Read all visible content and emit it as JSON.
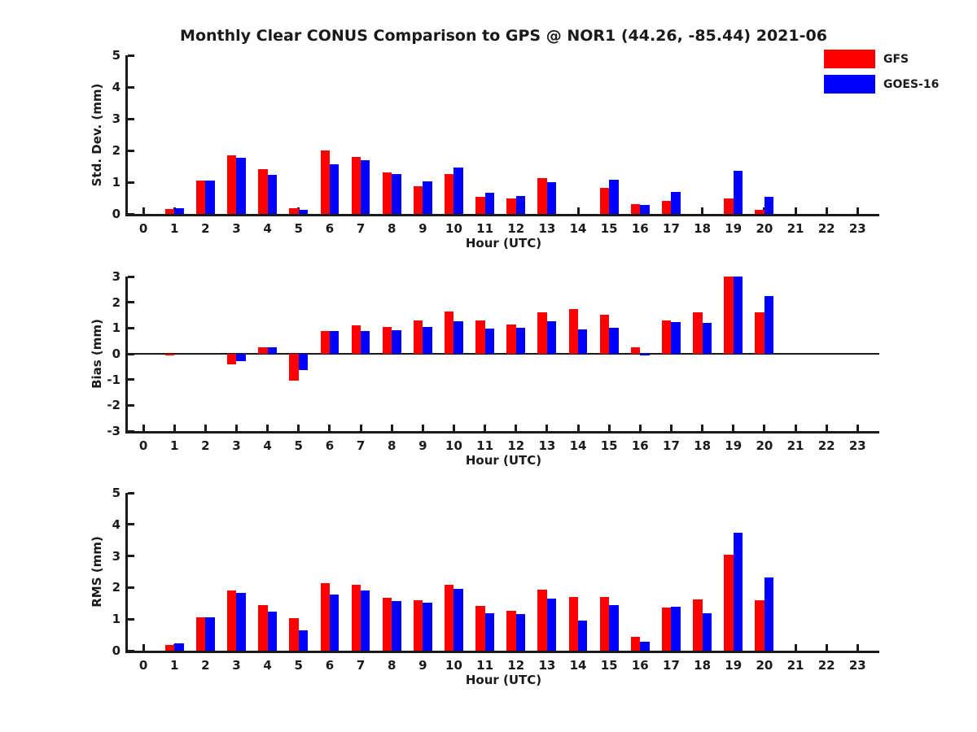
{
  "title": "Monthly Clear CONUS Comparison to GPS @ NOR1 (44.26, -85.44) 2021-06",
  "xlabel": "Hour (UTC)",
  "axis_color": "#1A1A1A",
  "legend": {
    "position": "top-right",
    "items": [
      {
        "label": "GFS",
        "color": "#FF0000"
      },
      {
        "label": "GOES-16",
        "color": "#0000FF"
      }
    ]
  },
  "chart_data": [
    {
      "type": "bar",
      "id": "std-dev",
      "ylabel": "Std. Dev. (mm)",
      "xlabel": "Hour (UTC)",
      "ylim": [
        0,
        5
      ],
      "yticks": [
        0,
        1,
        2,
        3,
        4,
        5
      ],
      "zero_line": false,
      "grid": false,
      "categories": [
        0,
        1,
        2,
        3,
        4,
        5,
        6,
        7,
        8,
        9,
        10,
        11,
        12,
        13,
        14,
        15,
        16,
        17,
        18,
        19,
        20,
        21,
        22,
        23
      ],
      "series": [
        {
          "name": "GFS",
          "color": "#FF0000",
          "values": [
            0,
            0.15,
            1.05,
            1.85,
            1.42,
            0.18,
            2.0,
            1.8,
            1.3,
            0.88,
            1.25,
            0.55,
            0.5,
            1.13,
            0,
            0.82,
            0.32,
            0.4,
            0,
            0.48,
            0.14,
            0,
            0,
            0
          ]
        },
        {
          "name": "GOES-16",
          "color": "#0000FF",
          "values": [
            0,
            0.18,
            1.05,
            1.78,
            1.22,
            0.13,
            1.57,
            1.7,
            1.25,
            1.03,
            1.45,
            0.67,
            0.57,
            1.01,
            0,
            1.07,
            0.28,
            0.7,
            0,
            1.37,
            0.53,
            0,
            0,
            0
          ]
        }
      ]
    },
    {
      "type": "bar",
      "id": "bias",
      "ylabel": "Bias (mm)",
      "xlabel": "Hour (UTC)",
      "ylim": [
        -3,
        3
      ],
      "yticks": [
        -3,
        -2,
        -1,
        0,
        1,
        2,
        3
      ],
      "zero_line": true,
      "grid": false,
      "categories": [
        0,
        1,
        2,
        3,
        4,
        5,
        6,
        7,
        8,
        9,
        10,
        11,
        12,
        13,
        14,
        15,
        16,
        17,
        18,
        19,
        20,
        21,
        22,
        23
      ],
      "series": [
        {
          "name": "GFS",
          "color": "#FF0000",
          "values": [
            0,
            -0.05,
            0,
            -0.42,
            0.25,
            -1.03,
            0.88,
            1.12,
            1.05,
            1.3,
            1.63,
            1.3,
            1.15,
            1.6,
            1.75,
            1.52,
            0.26,
            1.3,
            1.62,
            3.0,
            1.62,
            0,
            0,
            0
          ]
        },
        {
          "name": "GOES-16",
          "color": "#0000FF",
          "values": [
            0,
            0,
            0,
            -0.28,
            0.25,
            -0.62,
            0.88,
            0.9,
            0.93,
            1.05,
            1.27,
            0.97,
            1.02,
            1.27,
            0.95,
            1.0,
            -0.05,
            1.23,
            1.2,
            3.0,
            2.25,
            0,
            0,
            0
          ]
        }
      ]
    },
    {
      "type": "bar",
      "id": "rms",
      "ylabel": "RMS (mm)",
      "xlabel": "Hour (UTC)",
      "ylim": [
        0,
        5
      ],
      "yticks": [
        0,
        1,
        2,
        3,
        4,
        5
      ],
      "zero_line": false,
      "grid": false,
      "categories": [
        0,
        1,
        2,
        3,
        4,
        5,
        6,
        7,
        8,
        9,
        10,
        11,
        12,
        13,
        14,
        15,
        16,
        17,
        18,
        19,
        20,
        21,
        22,
        23
      ],
      "series": [
        {
          "name": "GFS",
          "color": "#FF0000",
          "values": [
            0,
            0.19,
            1.05,
            1.92,
            1.45,
            1.04,
            2.15,
            2.1,
            1.68,
            1.6,
            2.08,
            1.42,
            1.26,
            1.94,
            1.7,
            1.7,
            0.44,
            1.36,
            1.62,
            3.05,
            1.61,
            0,
            0,
            0
          ]
        },
        {
          "name": "GOES-16",
          "color": "#0000FF",
          "values": [
            0,
            0.24,
            1.06,
            1.82,
            1.24,
            0.65,
            1.78,
            1.9,
            1.57,
            1.51,
            1.97,
            1.18,
            1.15,
            1.65,
            0.95,
            1.44,
            0.28,
            1.39,
            1.18,
            3.75,
            2.32,
            0,
            0,
            0
          ]
        }
      ]
    }
  ]
}
